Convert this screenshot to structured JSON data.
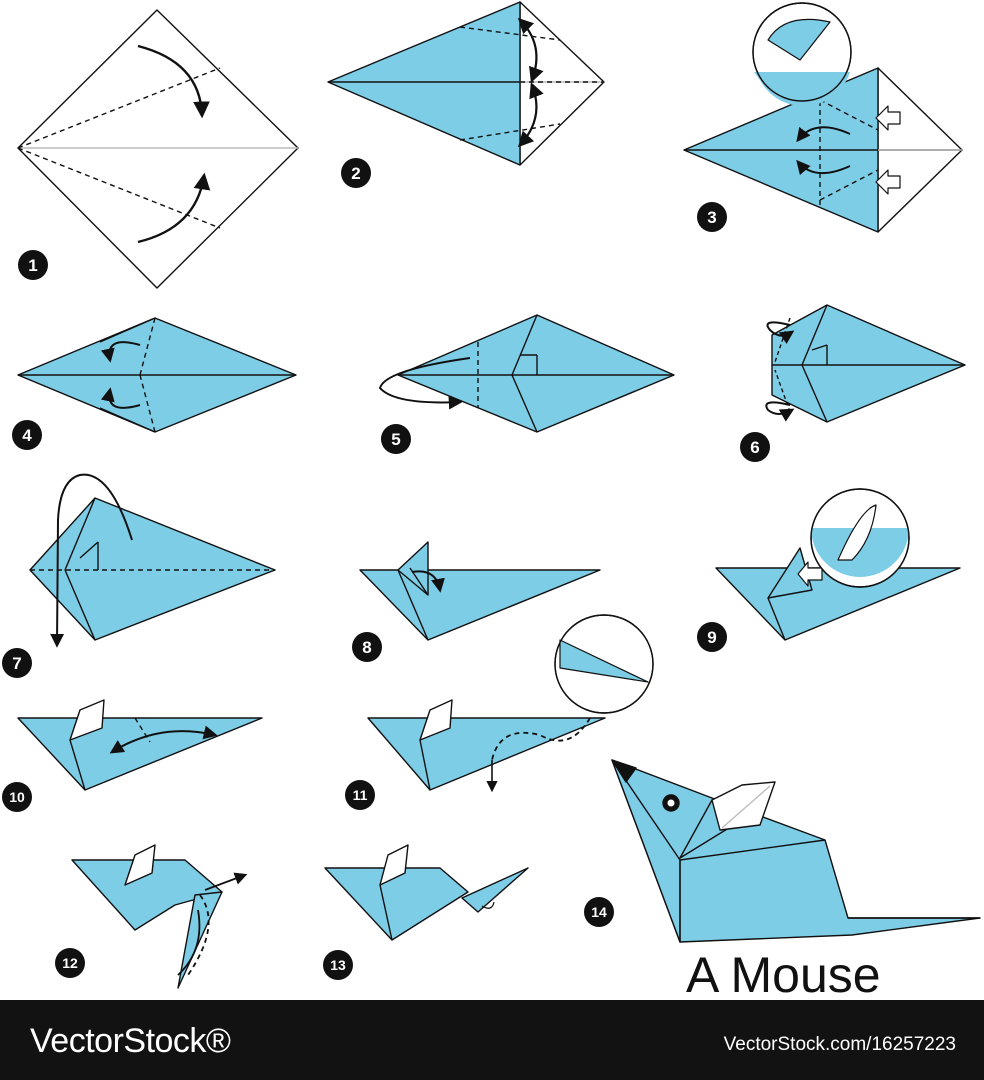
{
  "title": "A Mouse",
  "steps": [
    "1",
    "2",
    "3",
    "4",
    "5",
    "6",
    "7",
    "8",
    "9",
    "10",
    "11",
    "12",
    "13",
    "14"
  ],
  "footer": {
    "brand": "VectorStock®",
    "url_id": "VectorStock.com/16257223"
  },
  "colors": {
    "paper_blue": "#7ecde6",
    "paper_white": "#ffffff",
    "line": "#111111",
    "footer_bg": "#121212"
  }
}
